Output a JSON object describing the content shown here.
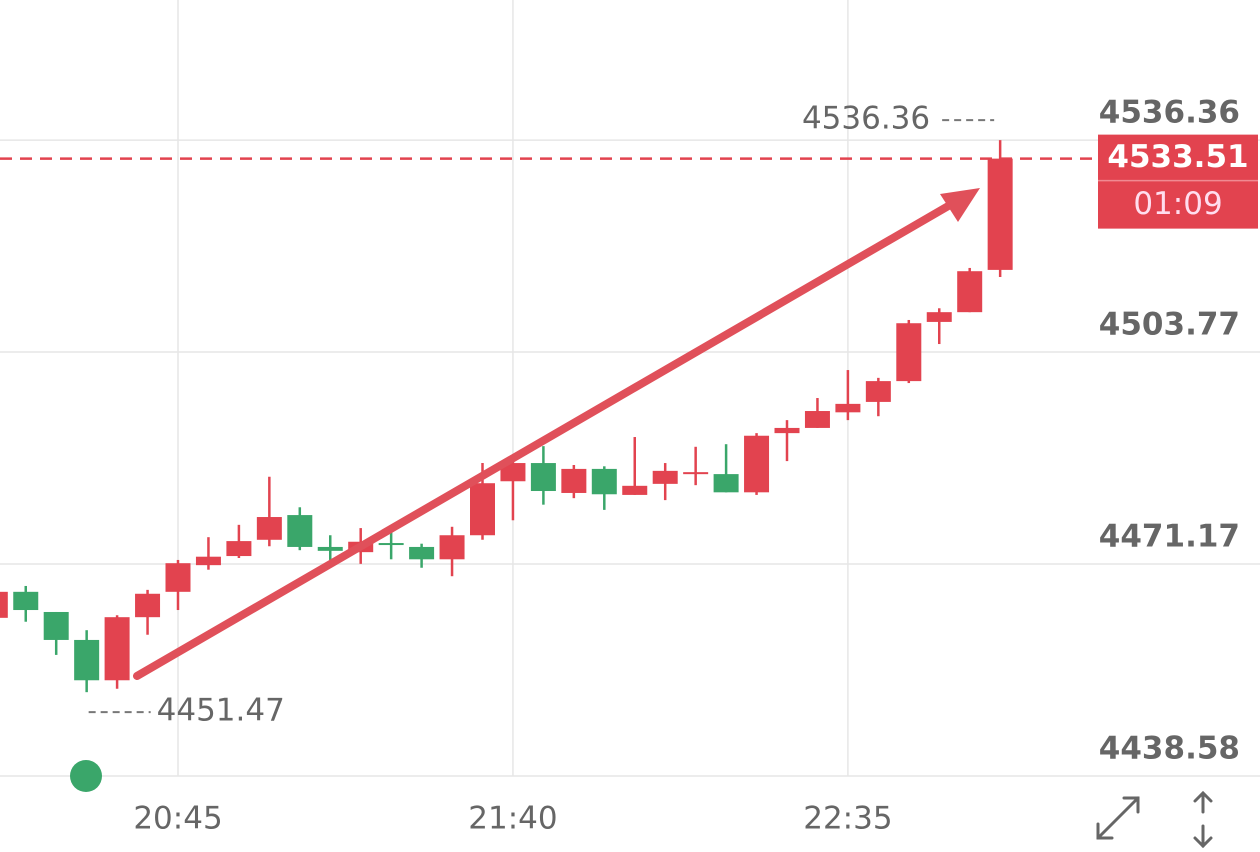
{
  "chart_data": {
    "type": "candlestick",
    "categories": [
      null,
      null,
      null,
      null,
      null,
      null,
      "20:45",
      null,
      null,
      null,
      null,
      null,
      null,
      null,
      null,
      null,
      null,
      "21:40",
      null,
      null,
      null,
      null,
      null,
      null,
      null,
      null,
      null,
      null,
      "22:35",
      null,
      null,
      null,
      null,
      null
    ],
    "open": [
      4462.9,
      4466.9,
      4463.8,
      4459.5,
      4453.3,
      4463.0,
      4466.9,
      4471.0,
      4472.4,
      4474.9,
      4478.7,
      4473.8,
      4473.0,
      4474.4,
      4473.8,
      4471.9,
      4475.6,
      4483.9,
      4486.7,
      4482.1,
      4485.8,
      4481.8,
      4483.5,
      4485.0,
      4485.0,
      4482.2,
      4491.3,
      4492.1,
      4494.5,
      4496.1,
      4499.3,
      4508.4,
      4509.9,
      4516.4
    ],
    "high": [
      4467.2,
      4467.8,
      4463.8,
      4461.0,
      4463.3,
      4467.2,
      4471.8,
      4475.3,
      4477.2,
      4484.6,
      4479.9,
      4475.6,
      4476.7,
      4476.1,
      4474.3,
      4476.9,
      4486.7,
      4487.6,
      4489.3,
      4486.4,
      4486.2,
      4490.7,
      4486.7,
      4489.2,
      4489.6,
      4491.3,
      4493.3,
      4496.7,
      4501.0,
      4499.8,
      4508.7,
      4510.5,
      4516.7,
      4536.36
    ],
    "low": [
      4462.6,
      4462.3,
      4457.2,
      4451.47,
      4452.0,
      4460.3,
      4464.1,
      4470.3,
      4472.1,
      4473.9,
      4473.3,
      4471.8,
      4471.2,
      4471.9,
      4470.6,
      4469.3,
      4474.9,
      4477.9,
      4480.3,
      4481.3,
      4479.5,
      4481.8,
      4481.0,
      4483.3,
      4482.2,
      4481.8,
      4487.0,
      4492.1,
      4493.3,
      4493.9,
      4499.0,
      4505.0,
      4509.9,
      4515.3
    ],
    "close": [
      4466.9,
      4464.1,
      4459.5,
      4453.3,
      4463.0,
      4466.6,
      4471.3,
      4472.3,
      4474.7,
      4478.4,
      4473.8,
      4473.2,
      4474.6,
      4474.1,
      4471.9,
      4475.6,
      4483.6,
      4486.7,
      4482.4,
      4485.8,
      4481.9,
      4483.2,
      4485.5,
      4485.3,
      4482.2,
      4490.9,
      4492.1,
      4494.7,
      4495.8,
      4499.3,
      4508.2,
      4509.9,
      4516.2,
      4533.51
    ],
    "up_color": "#e2434f",
    "down_color": "#3aa66a",
    "ylim": [
      4438.58,
      4557.9
    ],
    "yticks": [
      4438.58,
      4471.17,
      4503.77,
      4536.36
    ],
    "grid": true,
    "high_marker": 4536.36,
    "low_marker": 4451.47,
    "last_price": 4533.51,
    "countdown": "01:09"
  }
}
